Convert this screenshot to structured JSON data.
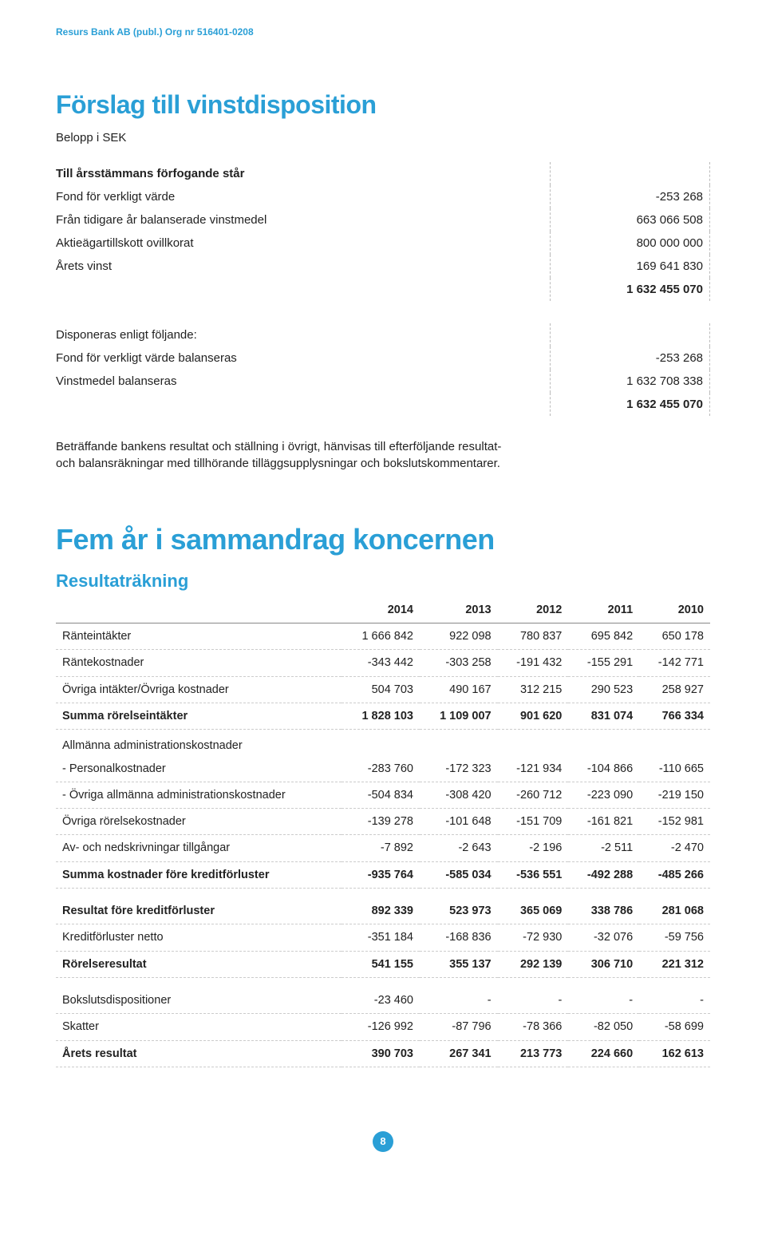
{
  "header": {
    "company": "Resurs Bank AB (publ.) Org nr 516401-0208"
  },
  "section1": {
    "title": "Förslag till vinstdisposition",
    "subtitle": "Belopp i SEK",
    "block1_heading": "Till årsstämmans förfogande står",
    "block1_rows": [
      {
        "label": "Fond för verkligt värde",
        "value": "-253 268"
      },
      {
        "label": "Från tidigare år balanserade vinstmedel",
        "value": "663 066 508"
      },
      {
        "label": "Aktieägartillskott ovillkorat",
        "value": "800 000 000"
      },
      {
        "label": "Årets vinst",
        "value": "169 641 830"
      }
    ],
    "block1_total": "1 632 455 070",
    "block2_heading": "Disponeras enligt följande:",
    "block2_rows": [
      {
        "label": "Fond för verkligt värde balanseras",
        "value": "-253 268"
      },
      {
        "label": "Vinstmedel balanseras",
        "value": "1 632 708 338"
      }
    ],
    "block2_total": "1 632 455 070",
    "paragraph": "Beträffande bankens resultat och ställning i övrigt, hänvisas till efterföljande resultat- och balansräkningar med tillhörande tilläggsupplysningar och bokslutskommentarer."
  },
  "section2": {
    "title": "Fem år i sammandrag koncernen",
    "subtitle": "Resultaträkning",
    "years": [
      "2014",
      "2013",
      "2012",
      "2011",
      "2010"
    ],
    "rows": [
      {
        "label": "Ränteintäkter",
        "v": [
          "1 666 842",
          "922 098",
          "780 837",
          "695 842",
          "650 178"
        ]
      },
      {
        "label": "Räntekostnader",
        "v": [
          "-343 442",
          "-303 258",
          "-191 432",
          "-155 291",
          "-142 771"
        ]
      },
      {
        "label": "Övriga intäkter/Övriga kostnader",
        "v": [
          "504 703",
          "490 167",
          "312 215",
          "290 523",
          "258 927"
        ]
      },
      {
        "label": "Summa rörelseintäkter",
        "v": [
          "1 828 103",
          "1 109 007",
          "901 620",
          "831 074",
          "766 334"
        ],
        "bold": true
      },
      {
        "label": "Allmänna administrationskostnader",
        "v": [
          "",
          "",
          "",
          "",
          ""
        ],
        "spacer": true
      },
      {
        "label": "- Personalkostnader",
        "v": [
          "-283 760",
          "-172 323",
          "-121 934",
          "-104 866",
          "-110 665"
        ]
      },
      {
        "label": "- Övriga allmänna administrationskostnader",
        "v": [
          "-504 834",
          "-308 420",
          "-260 712",
          "-223 090",
          "-219 150"
        ]
      },
      {
        "label": "Övriga rörelsekostnader",
        "v": [
          "-139 278",
          "-101 648",
          "-151 709",
          "-161 821",
          "-152 981"
        ]
      },
      {
        "label": "Av- och nedskrivningar tillgångar",
        "v": [
          "-7 892",
          "-2 643",
          "-2 196",
          "-2 511",
          "-2 470"
        ]
      },
      {
        "label": "Summa kostnader före kreditförluster",
        "v": [
          "-935 764",
          "-585 034",
          "-536 551",
          "-492 288",
          "-485 266"
        ],
        "bold": true
      },
      {
        "label": "",
        "v": [
          "",
          "",
          "",
          "",
          ""
        ],
        "spacer": true
      },
      {
        "label": "Resultat före kreditförluster",
        "v": [
          "892 339",
          "523 973",
          "365 069",
          "338 786",
          "281 068"
        ],
        "bold": true
      },
      {
        "label": "Kreditförluster netto",
        "v": [
          "-351 184",
          "-168 836",
          "-72 930",
          "-32 076",
          "-59 756"
        ]
      },
      {
        "label": "Rörelseresultat",
        "v": [
          "541 155",
          "355 137",
          "292 139",
          "306 710",
          "221 312"
        ],
        "bold": true
      },
      {
        "label": "",
        "v": [
          "",
          "",
          "",
          "",
          ""
        ],
        "spacer": true
      },
      {
        "label": "Bokslutsdispositioner",
        "v": [
          "-23 460",
          "-",
          "-",
          "-",
          "-"
        ]
      },
      {
        "label": "Skatter",
        "v": [
          "-126 992",
          "-87 796",
          "-78 366",
          "-82 050",
          "-58 699"
        ]
      },
      {
        "label": "Årets resultat",
        "v": [
          "390 703",
          "267 341",
          "213 773",
          "224 660",
          "162 613"
        ],
        "bold": true
      }
    ]
  },
  "page_number": "8"
}
